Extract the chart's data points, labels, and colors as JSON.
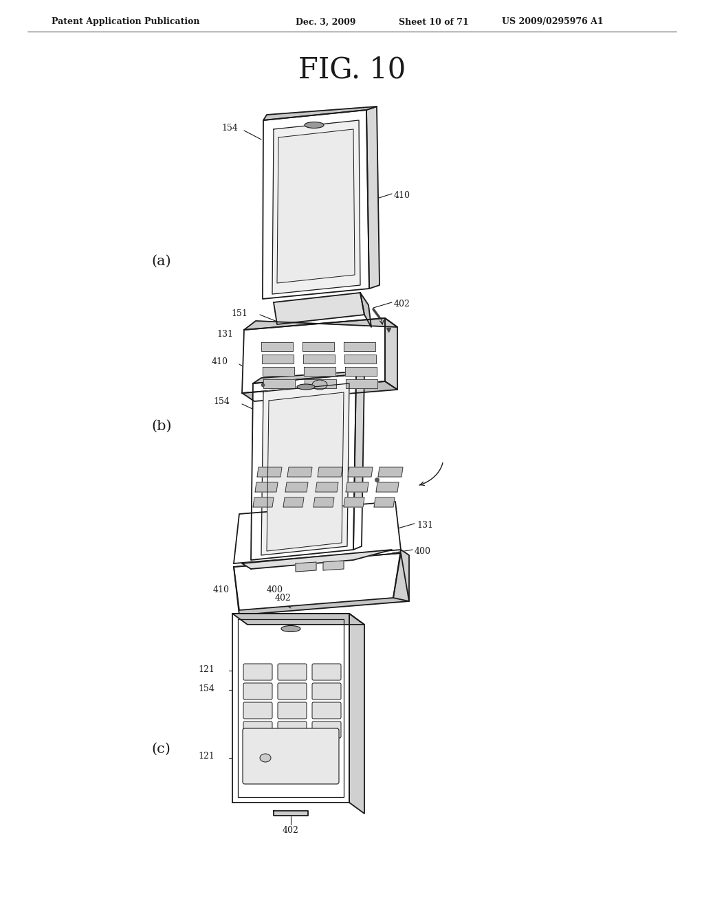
{
  "bg_color": "#ffffff",
  "header_left": "Patent Application Publication",
  "header_mid": "Dec. 3, 2009   Sheet 10 of 71",
  "header_right": "US 2009/0295976 A1",
  "fig_title": "FIG. 10",
  "line_color": "#1a1a1a",
  "line_width": 1.3,
  "fig_width": 10.24,
  "fig_height": 13.2,
  "dpi": 100
}
